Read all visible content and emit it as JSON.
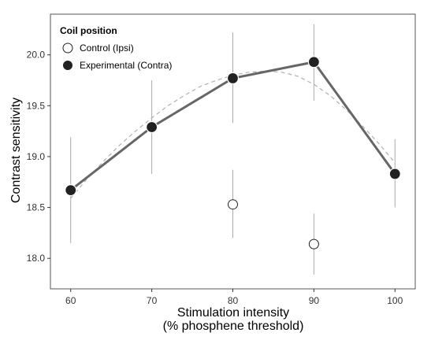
{
  "chart_data": {
    "type": "line",
    "xlabel": "Stimulation intensity",
    "xlabel_sub": "(% phosphene threshold)",
    "ylabel": "Contrast sensitivity",
    "xlim": [
      57.5,
      102.5
    ],
    "ylim": [
      17.7,
      20.4
    ],
    "x_ticks": [
      60,
      70,
      80,
      90,
      100
    ],
    "y_ticks": [
      18.0,
      18.5,
      19.0,
      19.5,
      20.0
    ],
    "x_tick_labels": [
      "60",
      "70",
      "80",
      "90",
      "100"
    ],
    "y_tick_labels": [
      "18.0",
      "18.5",
      "19.0",
      "19.5",
      "20.0"
    ],
    "grid": false,
    "legend": {
      "title": "Coil position",
      "placement": "top-left"
    },
    "series": [
      {
        "name": "Control (Ipsi)",
        "marker": "open-circle",
        "line": false,
        "x": [
          80,
          90
        ],
        "y": [
          18.53,
          18.14
        ],
        "err_low": [
          18.2,
          17.84
        ],
        "err_high": [
          18.87,
          18.44
        ]
      },
      {
        "name": "Experimental (Contra)",
        "marker": "filled-circle",
        "line": true,
        "x": [
          60,
          70,
          80,
          90,
          100
        ],
        "y": [
          18.67,
          19.29,
          19.77,
          19.93,
          18.83
        ],
        "err_low": [
          18.15,
          18.83,
          19.33,
          19.55,
          18.5
        ],
        "err_high": [
          19.19,
          19.75,
          20.22,
          20.3,
          19.17
        ]
      }
    ],
    "fit_curve": {
      "style": "dashed",
      "x": [
        60,
        62,
        64,
        66,
        68,
        70,
        72,
        74,
        76,
        78,
        80,
        82,
        84,
        86,
        88,
        90,
        92,
        94,
        96,
        98,
        100
      ],
      "y": [
        18.59,
        18.78,
        18.95,
        19.11,
        19.25,
        19.38,
        19.5,
        19.6,
        19.69,
        19.75,
        19.8,
        19.83,
        19.84,
        19.83,
        19.79,
        19.71,
        19.6,
        19.46,
        19.3,
        19.13,
        18.94
      ]
    },
    "colors": {
      "line": "#666666",
      "filled_marker": "#222222",
      "open_marker_fill": "#ffffff",
      "error_bar": "#aaaaaa",
      "fit_curve": "#b0b0b0",
      "frame": "#555555"
    }
  }
}
